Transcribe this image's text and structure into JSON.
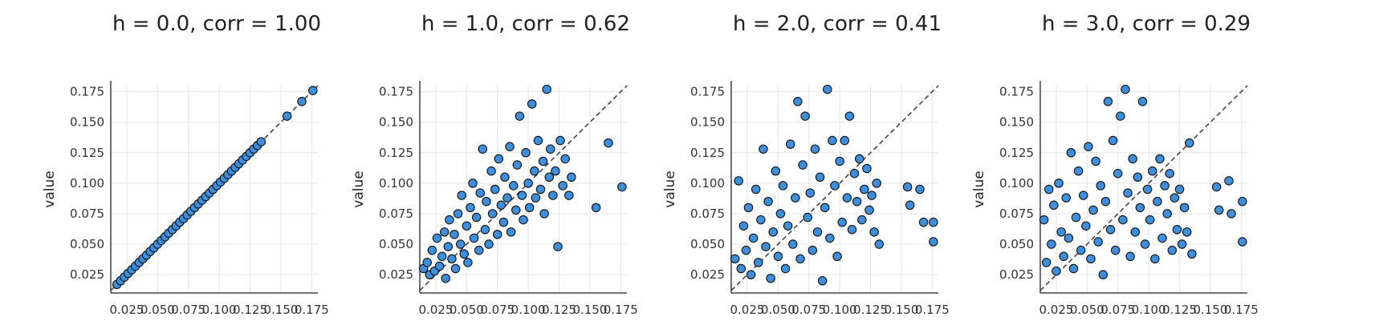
{
  "figure": {
    "background": "#ffffff",
    "point_color": "#3d8fdc",
    "point_edge": "#111111",
    "reference_line_style": "dashed",
    "grid": true
  },
  "chart_data": [
    {
      "type": "scatter",
      "title": "h = 0.0, corr = 1.00",
      "h": 0.0,
      "corr": 1.0,
      "xlabel": "",
      "ylabel": "value",
      "xlim": [
        0.012,
        0.18
      ],
      "ylim": [
        0.01,
        0.18
      ],
      "xticks": [
        "0.025",
        "0.050",
        "0.075",
        "0.100",
        "0.125",
        "0.150",
        "0.175"
      ],
      "yticks": [
        "0.025",
        "0.050",
        "0.075",
        "0.100",
        "0.125",
        "0.150",
        "0.175"
      ],
      "reference_line": "y = x",
      "points": [
        [
          0.017,
          0.017
        ],
        [
          0.02,
          0.02
        ],
        [
          0.023,
          0.023
        ],
        [
          0.026,
          0.026
        ],
        [
          0.029,
          0.029
        ],
        [
          0.032,
          0.032
        ],
        [
          0.035,
          0.035
        ],
        [
          0.038,
          0.038
        ],
        [
          0.041,
          0.041
        ],
        [
          0.044,
          0.044
        ],
        [
          0.047,
          0.047
        ],
        [
          0.05,
          0.05
        ],
        [
          0.053,
          0.053
        ],
        [
          0.056,
          0.056
        ],
        [
          0.059,
          0.059
        ],
        [
          0.062,
          0.062
        ],
        [
          0.065,
          0.065
        ],
        [
          0.068,
          0.068
        ],
        [
          0.071,
          0.071
        ],
        [
          0.074,
          0.074
        ],
        [
          0.077,
          0.077
        ],
        [
          0.08,
          0.08
        ],
        [
          0.083,
          0.083
        ],
        [
          0.086,
          0.086
        ],
        [
          0.089,
          0.089
        ],
        [
          0.092,
          0.092
        ],
        [
          0.095,
          0.095
        ],
        [
          0.098,
          0.098
        ],
        [
          0.101,
          0.101
        ],
        [
          0.104,
          0.104
        ],
        [
          0.107,
          0.107
        ],
        [
          0.11,
          0.11
        ],
        [
          0.113,
          0.113
        ],
        [
          0.116,
          0.116
        ],
        [
          0.119,
          0.119
        ],
        [
          0.122,
          0.122
        ],
        [
          0.125,
          0.125
        ],
        [
          0.128,
          0.128
        ],
        [
          0.131,
          0.131
        ],
        [
          0.134,
          0.134
        ],
        [
          0.155,
          0.155
        ],
        [
          0.167,
          0.167
        ],
        [
          0.176,
          0.176
        ]
      ]
    },
    {
      "type": "scatter",
      "title": "h = 1.0, corr = 0.62",
      "h": 1.0,
      "corr": 0.62,
      "xlabel": "",
      "ylabel": "value",
      "xlim": [
        0.012,
        0.18
      ],
      "ylim": [
        0.01,
        0.18
      ],
      "xticks": [
        "0.025",
        "0.050",
        "0.075",
        "0.100",
        "0.125",
        "0.150",
        "0.175"
      ],
      "yticks": [
        "0.025",
        "0.050",
        "0.075",
        "0.100",
        "0.125",
        "0.150",
        "0.175"
      ],
      "reference_line": "y = x",
      "points": [
        [
          0.015,
          0.03
        ],
        [
          0.018,
          0.035
        ],
        [
          0.02,
          0.025
        ],
        [
          0.022,
          0.045
        ],
        [
          0.024,
          0.028
        ],
        [
          0.026,
          0.055
        ],
        [
          0.028,
          0.032
        ],
        [
          0.03,
          0.04
        ],
        [
          0.032,
          0.06
        ],
        [
          0.033,
          0.022
        ],
        [
          0.035,
          0.048
        ],
        [
          0.036,
          0.07
        ],
        [
          0.038,
          0.038
        ],
        [
          0.04,
          0.058
        ],
        [
          0.041,
          0.03
        ],
        [
          0.043,
          0.075
        ],
        [
          0.045,
          0.05
        ],
        [
          0.046,
          0.09
        ],
        [
          0.048,
          0.042
        ],
        [
          0.05,
          0.065
        ],
        [
          0.051,
          0.035
        ],
        [
          0.053,
          0.08
        ],
        [
          0.055,
          0.1
        ],
        [
          0.056,
          0.055
        ],
        [
          0.058,
          0.072
        ],
        [
          0.06,
          0.045
        ],
        [
          0.061,
          0.092
        ],
        [
          0.063,
          0.128
        ],
        [
          0.065,
          0.062
        ],
        [
          0.066,
          0.085
        ],
        [
          0.068,
          0.05
        ],
        [
          0.07,
          0.11
        ],
        [
          0.071,
          0.075
        ],
        [
          0.073,
          0.095
        ],
        [
          0.075,
          0.058
        ],
        [
          0.076,
          0.12
        ],
        [
          0.078,
          0.082
        ],
        [
          0.08,
          0.068
        ],
        [
          0.081,
          0.105
        ],
        [
          0.083,
          0.088
        ],
        [
          0.085,
          0.13
        ],
        [
          0.086,
          0.06
        ],
        [
          0.088,
          0.098
        ],
        [
          0.09,
          0.078
        ],
        [
          0.091,
          0.115
        ],
        [
          0.093,
          0.155
        ],
        [
          0.095,
          0.09
        ],
        [
          0.096,
          0.07
        ],
        [
          0.098,
          0.125
        ],
        [
          0.1,
          0.1
        ],
        [
          0.101,
          0.08
        ],
        [
          0.103,
          0.165
        ],
        [
          0.105,
          0.11
        ],
        [
          0.106,
          0.088
        ],
        [
          0.108,
          0.135
        ],
        [
          0.11,
          0.095
        ],
        [
          0.112,
          0.118
        ],
        [
          0.113,
          0.075
        ],
        [
          0.115,
          0.177
        ],
        [
          0.117,
          0.105
        ],
        [
          0.118,
          0.128
        ],
        [
          0.12,
          0.09
        ],
        [
          0.122,
          0.11
        ],
        [
          0.124,
          0.048
        ],
        [
          0.126,
          0.135
        ],
        [
          0.128,
          0.098
        ],
        [
          0.13,
          0.12
        ],
        [
          0.133,
          0.09
        ],
        [
          0.135,
          0.105
        ],
        [
          0.155,
          0.08
        ],
        [
          0.165,
          0.133
        ],
        [
          0.176,
          0.097
        ]
      ]
    },
    {
      "type": "scatter",
      "title": "h = 2.0, corr = 0.41",
      "h": 2.0,
      "corr": 0.41,
      "xlabel": "",
      "ylabel": "value",
      "xlim": [
        0.012,
        0.18
      ],
      "ylim": [
        0.01,
        0.18
      ],
      "xticks": [
        "0.025",
        "0.050",
        "0.075",
        "0.100",
        "0.125",
        "0.150",
        "0.175"
      ],
      "yticks": [
        "0.025",
        "0.050",
        "0.075",
        "0.100",
        "0.125",
        "0.150",
        "0.175"
      ],
      "reference_line": "y = x",
      "points": [
        [
          0.015,
          0.038
        ],
        [
          0.018,
          0.102
        ],
        [
          0.02,
          0.03
        ],
        [
          0.022,
          0.065
        ],
        [
          0.024,
          0.045
        ],
        [
          0.026,
          0.08
        ],
        [
          0.028,
          0.025
        ],
        [
          0.03,
          0.055
        ],
        [
          0.032,
          0.095
        ],
        [
          0.034,
          0.035
        ],
        [
          0.036,
          0.07
        ],
        [
          0.038,
          0.128
        ],
        [
          0.04,
          0.048
        ],
        [
          0.042,
          0.085
        ],
        [
          0.044,
          0.022
        ],
        [
          0.046,
          0.06
        ],
        [
          0.048,
          0.11
        ],
        [
          0.05,
          0.04
        ],
        [
          0.052,
          0.075
        ],
        [
          0.054,
          0.098
        ],
        [
          0.056,
          0.03
        ],
        [
          0.058,
          0.065
        ],
        [
          0.06,
          0.132
        ],
        [
          0.062,
          0.05
        ],
        [
          0.064,
          0.088
        ],
        [
          0.066,
          0.167
        ],
        [
          0.068,
          0.038
        ],
        [
          0.07,
          0.115
        ],
        [
          0.072,
          0.155
        ],
        [
          0.074,
          0.072
        ],
        [
          0.076,
          0.092
        ],
        [
          0.078,
          0.045
        ],
        [
          0.08,
          0.128
        ],
        [
          0.082,
          0.06
        ],
        [
          0.084,
          0.105
        ],
        [
          0.086,
          0.02
        ],
        [
          0.088,
          0.08
        ],
        [
          0.09,
          0.177
        ],
        [
          0.092,
          0.055
        ],
        [
          0.094,
          0.135
        ],
        [
          0.096,
          0.098
        ],
        [
          0.098,
          0.04
        ],
        [
          0.1,
          0.118
        ],
        [
          0.102,
          0.068
        ],
        [
          0.104,
          0.135
        ],
        [
          0.106,
          0.088
        ],
        [
          0.108,
          0.155
        ],
        [
          0.11,
          0.062
        ],
        [
          0.112,
          0.108
        ],
        [
          0.114,
          0.085
        ],
        [
          0.116,
          0.12
        ],
        [
          0.118,
          0.07
        ],
        [
          0.12,
          0.095
        ],
        [
          0.122,
          0.112
        ],
        [
          0.124,
          0.078
        ],
        [
          0.126,
          0.09
        ],
        [
          0.128,
          0.06
        ],
        [
          0.13,
          0.1
        ],
        [
          0.132,
          0.05
        ],
        [
          0.155,
          0.097
        ],
        [
          0.157,
          0.082
        ],
        [
          0.165,
          0.095
        ],
        [
          0.168,
          0.068
        ],
        [
          0.176,
          0.068
        ],
        [
          0.176,
          0.052
        ]
      ]
    },
    {
      "type": "scatter",
      "title": "h = 3.0, corr = 0.29",
      "h": 3.0,
      "corr": 0.29,
      "xlabel": "",
      "ylabel": "value",
      "xlim": [
        0.012,
        0.18
      ],
      "ylim": [
        0.01,
        0.18
      ],
      "xticks": [
        "0.025",
        "0.050",
        "0.075",
        "0.100",
        "0.125",
        "0.150",
        "0.175"
      ],
      "yticks": [
        "0.025",
        "0.050",
        "0.075",
        "0.100",
        "0.125",
        "0.150",
        "0.175"
      ],
      "reference_line": "y = x",
      "points": [
        [
          0.015,
          0.07
        ],
        [
          0.017,
          0.035
        ],
        [
          0.019,
          0.095
        ],
        [
          0.021,
          0.05
        ],
        [
          0.023,
          0.082
        ],
        [
          0.025,
          0.028
        ],
        [
          0.027,
          0.1
        ],
        [
          0.029,
          0.06
        ],
        [
          0.031,
          0.04
        ],
        [
          0.033,
          0.088
        ],
        [
          0.035,
          0.055
        ],
        [
          0.037,
          0.125
        ],
        [
          0.039,
          0.03
        ],
        [
          0.041,
          0.072
        ],
        [
          0.043,
          0.11
        ],
        [
          0.045,
          0.045
        ],
        [
          0.047,
          0.09
        ],
        [
          0.049,
          0.065
        ],
        [
          0.051,
          0.13
        ],
        [
          0.053,
          0.038
        ],
        [
          0.055,
          0.078
        ],
        [
          0.057,
          0.118
        ],
        [
          0.059,
          0.052
        ],
        [
          0.061,
          0.098
        ],
        [
          0.063,
          0.025
        ],
        [
          0.065,
          0.085
        ],
        [
          0.067,
          0.167
        ],
        [
          0.069,
          0.062
        ],
        [
          0.071,
          0.135
        ],
        [
          0.073,
          0.045
        ],
        [
          0.075,
          0.108
        ],
        [
          0.077,
          0.155
        ],
        [
          0.079,
          0.07
        ],
        [
          0.081,
          0.177
        ],
        [
          0.083,
          0.092
        ],
        [
          0.085,
          0.04
        ],
        [
          0.087,
          0.12
        ],
        [
          0.089,
          0.06
        ],
        [
          0.091,
          0.105
        ],
        [
          0.093,
          0.08
        ],
        [
          0.095,
          0.167
        ],
        [
          0.097,
          0.05
        ],
        [
          0.099,
          0.095
        ],
        [
          0.101,
          0.07
        ],
        [
          0.103,
          0.11
        ],
        [
          0.105,
          0.038
        ],
        [
          0.107,
          0.085
        ],
        [
          0.109,
          0.12
        ],
        [
          0.111,
          0.055
        ],
        [
          0.113,
          0.098
        ],
        [
          0.115,
          0.075
        ],
        [
          0.117,
          0.108
        ],
        [
          0.119,
          0.045
        ],
        [
          0.121,
          0.088
        ],
        [
          0.123,
          0.062
        ],
        [
          0.125,
          0.095
        ],
        [
          0.127,
          0.05
        ],
        [
          0.129,
          0.08
        ],
        [
          0.131,
          0.06
        ],
        [
          0.133,
          0.133
        ],
        [
          0.135,
          0.042
        ],
        [
          0.155,
          0.097
        ],
        [
          0.157,
          0.078
        ],
        [
          0.165,
          0.102
        ],
        [
          0.167,
          0.075
        ],
        [
          0.176,
          0.085
        ],
        [
          0.176,
          0.052
        ]
      ]
    }
  ]
}
